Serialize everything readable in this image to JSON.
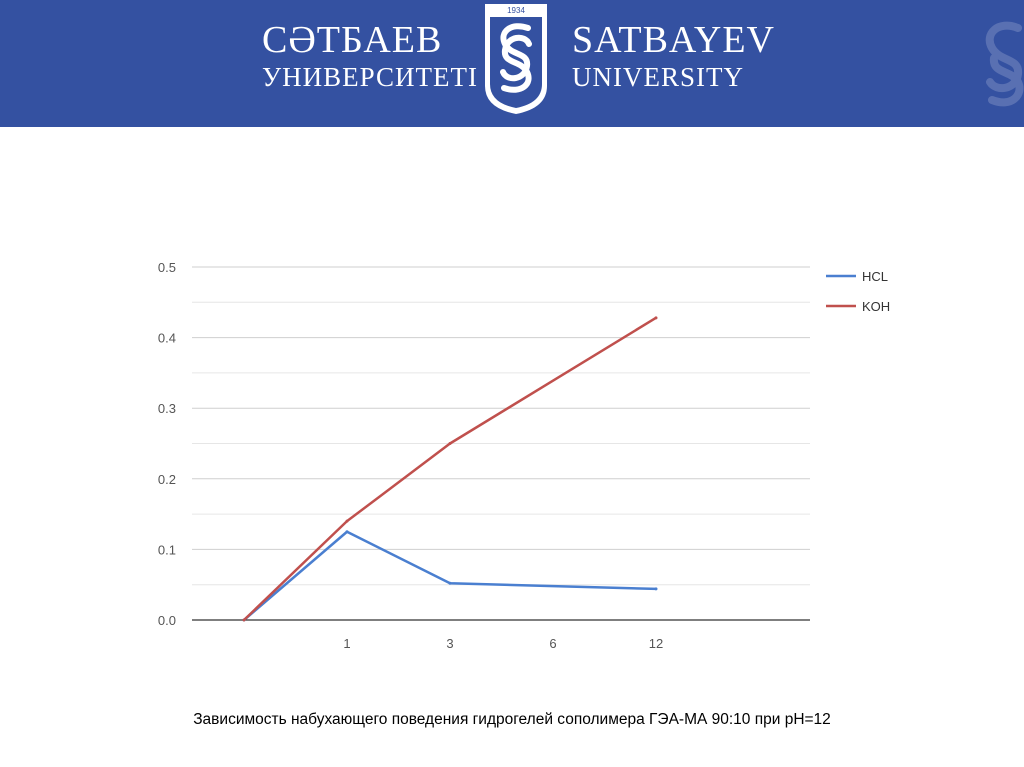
{
  "header": {
    "left_line1": "СӘТБАЕВ",
    "left_line2": "УНИВЕРСИТЕТІ",
    "right_line1": "SATBAYEV",
    "right_line2": "UNIVERSITY",
    "emblem_year": "1934",
    "background_color": "#3451a1"
  },
  "chart_data": {
    "type": "line",
    "categories": [
      "",
      "1",
      "3",
      "6",
      "12"
    ],
    "x_tick_labels": [
      "1",
      "3",
      "6",
      "12"
    ],
    "y_ticks": [
      "0.0",
      "0.1",
      "0.2",
      "0.3",
      "0.4",
      "0.5"
    ],
    "ylim": [
      0,
      0.5
    ],
    "grid": true,
    "legend_position": "right",
    "series": [
      {
        "name": "HCL",
        "color": "#4a7fd0",
        "values": [
          0,
          0.125,
          0.052,
          null,
          0.044
        ]
      },
      {
        "name": "KOH",
        "color": "#c0504d",
        "values": [
          0,
          0.14,
          0.25,
          null,
          0.428
        ]
      }
    ],
    "title": "",
    "xlabel": "",
    "ylabel": ""
  },
  "caption": "Зависимость набухающего поведения гидрогелей сополимера ГЭА-МА 90:10  при pH=12"
}
